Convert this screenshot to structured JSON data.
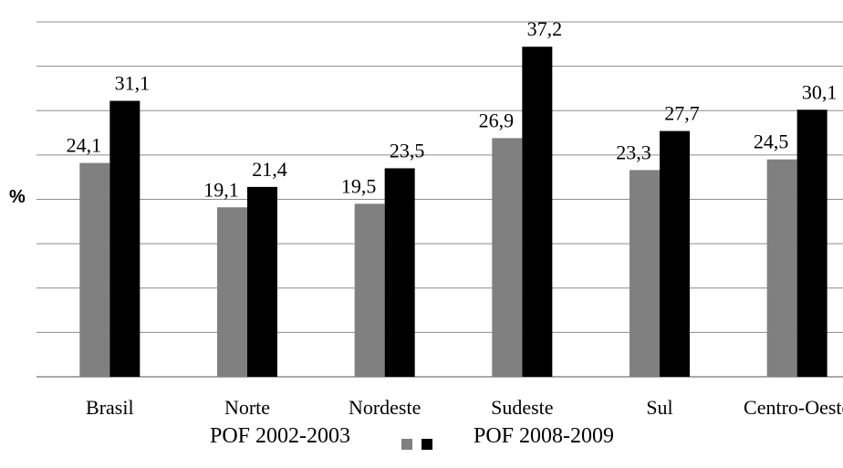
{
  "chart_data": {
    "type": "bar",
    "title": "",
    "xlabel": "",
    "ylabel": "%",
    "ylim": [
      0,
      40
    ],
    "gridlines": [
      0,
      5,
      10,
      15,
      20,
      25,
      30,
      35,
      40
    ],
    "grid": true,
    "legend_position": "bottom",
    "categories": [
      "Brasil",
      "Norte",
      "Nordeste",
      "Sudeste",
      "Sul",
      "Centro-Oeste"
    ],
    "series": [
      {
        "name": "POF 2002-2003",
        "color": "#808080",
        "values": [
          24.1,
          19.1,
          19.5,
          26.9,
          23.3,
          24.5
        ],
        "labels": [
          "24,1",
          "19,1",
          "19,5",
          "26,9",
          "23,3",
          "24,5"
        ]
      },
      {
        "name": "POF 2008-2009",
        "color": "#000000",
        "values": [
          31.1,
          21.4,
          23.5,
          37.2,
          27.7,
          30.1
        ],
        "labels": [
          "31,1",
          "21,4",
          "23,5",
          "37,2",
          "27,7",
          "30,1"
        ]
      }
    ]
  }
}
